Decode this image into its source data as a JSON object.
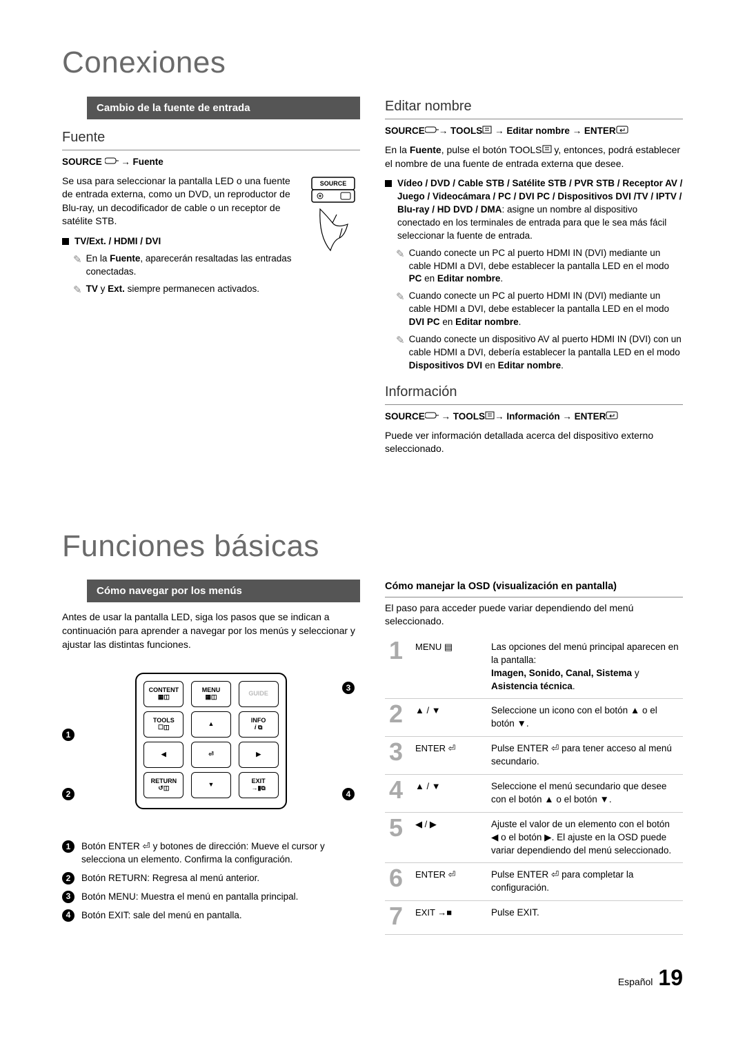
{
  "page": {
    "title1": "Conexiones",
    "title2": "Funciones básicas",
    "footer_lang": "Español",
    "footer_page": "19"
  },
  "banner1": "Cambio de la fuente de entrada",
  "fuente": {
    "heading": "Fuente",
    "breadcrumb_prefix": "SOURCE",
    "breadcrumb_target": "Fuente",
    "intro": "Se usa para seleccionar la pantalla LED o una fuente de entrada externa, como un DVD, un reproductor de Blu-ray, un decodificador de cable o un receptor de satélite STB.",
    "bullet1": "TV/Ext. / HDMI / DVI",
    "note1_a": "En la ",
    "note1_b": "Fuente",
    "note1_c": ", aparecerán resaltadas las entradas conectadas.",
    "note2_a": "TV",
    "note2_b": " y ",
    "note2_c": "Ext.",
    "note2_d": " siempre permanecen activados.",
    "source_label": "SOURCE"
  },
  "editar": {
    "heading": "Editar nombre",
    "bc_source": "SOURCE",
    "bc_tools": "TOOLS",
    "bc_editar": "Editar nombre",
    "bc_enter": "ENTER",
    "intro_a": "En la ",
    "intro_b": "Fuente",
    "intro_c": ", pulse el botón TOOLS",
    "intro_d": " y, entonces, podrá establecer el nombre de una fuente de entrada externa que desee.",
    "bullet_label": "Vídeo / DVD / Cable STB / Satélite STB / PVR STB / Receptor AV / Juego / Videocámara / PC / DVI PC / Dispositivos DVI /TV / IPTV / Blu-ray / HD DVD / DMA",
    "bullet_rest": ": asigne un nombre al dispositivo conectado en los terminales de entrada para que le sea más fácil seleccionar la fuente de entrada.",
    "note1_a": "Cuando conecte un PC al puerto HDMI IN (DVI) mediante un cable HDMI a DVI, debe establecer la pantalla LED en el modo ",
    "note1_b": "PC",
    "note1_c": " en ",
    "note1_d": "Editar nombre",
    "note2_a": "Cuando conecte un PC al puerto HDMI IN (DVI) mediante un cable HDMI a DVI, debe establecer la pantalla LED en el modo ",
    "note2_b": "DVI PC",
    "note2_c": " en ",
    "note2_d": "Editar nombre",
    "note3_a": "Cuando conecte un dispositivo AV al puerto HDMI IN (DVI) con un cable HDMI a DVI, debería establecer la pantalla LED en el modo ",
    "note3_b": "Dispositivos DVI",
    "note3_c": " en ",
    "note3_d": "Editar nombre"
  },
  "info": {
    "heading": "Información",
    "bc_source": "SOURCE",
    "bc_tools": "TOOLS",
    "bc_info": "Información",
    "bc_enter": "ENTER",
    "body": "Puede ver información detallada acerca del dispositivo externo seleccionado."
  },
  "banner2": "Cómo navegar por los menús",
  "nav_intro": "Antes de usar la pantalla LED, siga los pasos que se indican a continuación para aprender a navegar por los menús y seleccionar y ajustar las distintas funciones.",
  "remote": {
    "content": "CONTENT",
    "menu": "MENU",
    "guide": "GUIDE",
    "tools": "TOOLS",
    "info": "INFO",
    "return": "RETURN",
    "exit": "EXIT"
  },
  "legend": {
    "l1": "Botón ENTER ⏎ y botones de dirección: Mueve el cursor y selecciona un elemento. Confirma la configuración.",
    "l2": "Botón RETURN: Regresa al menú anterior.",
    "l3": "Botón MENU: Muestra el menú en pantalla principal.",
    "l4": "Botón EXIT: sale del menú en pantalla."
  },
  "osd": {
    "heading": "Cómo manejar la OSD (visualización en pantalla)",
    "intro": "El paso para acceder puede variar dependiendo del menú seleccionado.",
    "rows": [
      {
        "step": "1",
        "key": "MENU ▤",
        "desc_a": "Las opciones del menú principal aparecen en la pantalla:",
        "desc_b": "Imagen, Sonido, Canal, Sistema",
        "desc_c": " y ",
        "desc_d": "Asistencia técnica",
        "desc_e": "."
      },
      {
        "step": "2",
        "key": "▲ / ▼",
        "desc_a": "Seleccione un icono con el botón ▲ o el botón ▼."
      },
      {
        "step": "3",
        "key": "ENTER ⏎",
        "desc_a": "Pulse ENTER ⏎ para tener acceso al menú secundario."
      },
      {
        "step": "4",
        "key": "▲ / ▼",
        "desc_a": "Seleccione el menú secundario que desee con el botón ▲ o el botón ▼."
      },
      {
        "step": "5",
        "key": "◀ / ▶",
        "desc_a": "Ajuste el valor de un elemento con el botón ◀ o el botón ▶. El ajuste en la OSD puede variar dependiendo del menú seleccionado."
      },
      {
        "step": "6",
        "key": "ENTER ⏎",
        "desc_a": "Pulse ENTER ⏎ para completar la configuración."
      },
      {
        "step": "7",
        "key": "EXIT →■",
        "desc_a": "Pulse EXIT."
      }
    ]
  }
}
